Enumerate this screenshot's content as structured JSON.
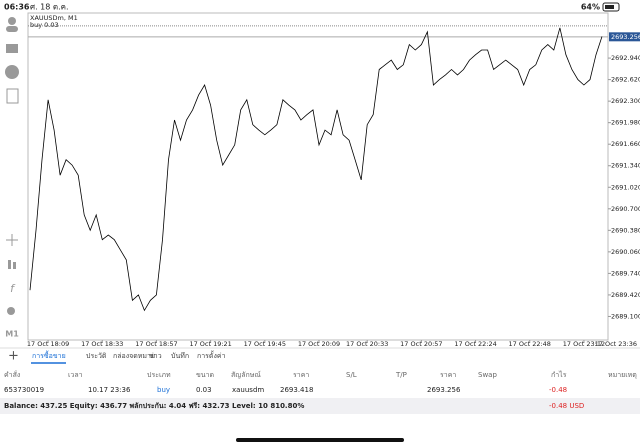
{
  "status_bar": {
    "time": "06:36",
    "date": "ศ. 18 ต.ค.",
    "battery": "64%"
  },
  "chart_data": {
    "type": "line",
    "symbol_label": "XAUUSDm, M1",
    "order_label": "buy 0.03",
    "color": "#000000",
    "categories": [
      null,
      null,
      null,
      "17 Oct 18:09",
      null,
      null,
      null,
      null,
      null,
      null,
      null,
      null,
      "17 Oct 18:33",
      null,
      null,
      null,
      null,
      null,
      null,
      null,
      null,
      "17 Oct 18:57",
      null,
      null,
      null,
      null,
      null,
      null,
      null,
      null,
      "17 Oct 19:21",
      null,
      null,
      null,
      null,
      null,
      null,
      null,
      null,
      "17 Oct 19:45",
      null,
      null,
      null,
      null,
      null,
      null,
      null,
      null,
      "17 Oct 20:09",
      null,
      null,
      null,
      null,
      null,
      null,
      null,
      "17 Oct 20:33",
      null,
      null,
      null,
      null,
      null,
      null,
      null,
      null,
      "17 Oct 20:57",
      null,
      null,
      null,
      null,
      null,
      null,
      null,
      null,
      "17 Oct 22:24",
      null,
      null,
      null,
      null,
      null,
      null,
      null,
      null,
      "17 Oct 22:48",
      null,
      null,
      null,
      null,
      null,
      null,
      null,
      null,
      "17 Oct 23:12",
      null,
      null,
      null
    ],
    "values": [
      2689.49,
      2690.38,
      2691.43,
      2692.32,
      2691.87,
      2691.2,
      2691.43,
      2691.35,
      2691.2,
      2690.61,
      2690.38,
      2690.61,
      2690.24,
      2690.31,
      2690.24,
      2690.09,
      2689.94,
      2689.34,
      2689.42,
      2689.19,
      2689.34,
      2689.42,
      2690.24,
      2691.43,
      2692.02,
      2691.72,
      2692.02,
      2692.17,
      2692.39,
      2692.54,
      2692.24,
      2691.72,
      2691.35,
      2691.5,
      2691.65,
      2692.17,
      2692.32,
      2691.95,
      2691.87,
      2691.8,
      2691.87,
      2691.95,
      2692.32,
      2692.24,
      2692.17,
      2692.02,
      2692.1,
      2692.17,
      2691.65,
      2691.87,
      2691.8,
      2692.17,
      2691.8,
      2691.72,
      2691.43,
      2691.13,
      2691.95,
      2692.1,
      2692.77,
      2692.84,
      2692.91,
      2692.77,
      2692.84,
      2693.14,
      2693.06,
      2693.14,
      2693.33,
      2692.54,
      2692.62,
      2692.69,
      2692.77,
      2692.69,
      2692.77,
      2692.91,
      2692.99,
      2693.06,
      2693.06,
      2692.77,
      2692.84,
      2692.91,
      2692.84,
      2692.77,
      2692.54,
      2692.77,
      2692.84,
      2693.06,
      2693.14,
      2693.06,
      2693.39,
      2692.99,
      2692.77,
      2692.62,
      2692.54,
      2692.62,
      2692.99,
      2693.26
    ],
    "ylim": [
      2688.75,
      2693.61
    ],
    "yticks": [
      {
        "value": 2692.94,
        "label": "2692.940"
      },
      {
        "value": 2692.62,
        "label": "2692.620"
      },
      {
        "value": 2692.3,
        "label": "2692.300"
      },
      {
        "value": 2691.98,
        "label": "2691.980"
      },
      {
        "value": 2691.66,
        "label": "2691.660"
      },
      {
        "value": 2691.34,
        "label": "2691.340"
      },
      {
        "value": 2691.02,
        "label": "2691.020"
      },
      {
        "value": 2690.7,
        "label": "2690.700"
      },
      {
        "value": 2690.38,
        "label": "2690.380"
      },
      {
        "value": 2690.06,
        "label": "2690.060"
      },
      {
        "value": 2689.74,
        "label": "2689.740"
      },
      {
        "value": 2689.42,
        "label": "2689.420"
      },
      {
        "value": 2689.1,
        "label": "2689.100"
      }
    ],
    "current_price": 2693.256,
    "order_price": 2693.418,
    "last_time_label": "17 Oct 23:36"
  },
  "toolbar_label": "M1",
  "tabs": [
    "+",
    "การซื้อขาย",
    "ประวัติ",
    "กล่องจดหมาย",
    "ข่าว",
    "บันทึก",
    "การตั้งค่า"
  ],
  "table": {
    "columns": [
      {
        "header": "คำสั่ง",
        "value": "653730019"
      },
      {
        "header": "เวลา",
        "value": "10.17 23:36"
      },
      {
        "header": "ประเภท",
        "value": "buy"
      },
      {
        "header": "ขนาด",
        "value": "0.03"
      },
      {
        "header": "สัญลักษณ์",
        "value": "xauusdm"
      },
      {
        "header": "ราคา",
        "value": "2693.418"
      },
      {
        "header": "S/L"
      },
      {
        "header": "T/P"
      },
      {
        "header": "ราคา",
        "value": "2693.256"
      },
      {
        "header": "Swap"
      },
      {
        "header": "กำไร",
        "value": "-0.48"
      },
      {
        "header": "หมายเหตุ"
      }
    ]
  },
  "balance": {
    "text": "Balance: 437.25 Equity: 436.77 พลักประกัน: 4.04 ฟรี: 432.73 Level: 10 810.80%",
    "profit": "-0.48 USD"
  }
}
